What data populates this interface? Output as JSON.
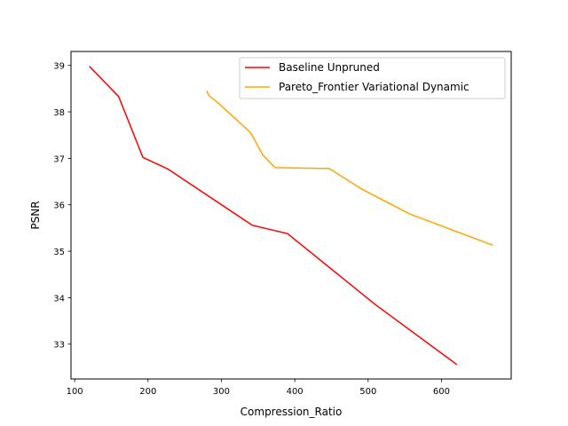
{
  "chart_data": {
    "type": "line",
    "title": "",
    "xlabel": "Compression_Ratio",
    "ylabel": "PSNR",
    "xlim": [
      95,
      695
    ],
    "ylim": [
      32.25,
      39.3
    ],
    "xticks": [
      100,
      200,
      300,
      400,
      500,
      600
    ],
    "yticks": [
      33,
      34,
      35,
      36,
      37,
      38,
      39
    ],
    "grid": false,
    "legend_position": "top-right",
    "series": [
      {
        "name": "Baseline Unpruned",
        "color": "#ff0000",
        "points": [
          [
            120,
            38.98
          ],
          [
            160,
            38.33
          ],
          [
            193,
            37.02
          ],
          [
            227,
            36.77
          ],
          [
            342,
            35.56
          ],
          [
            390,
            35.38
          ],
          [
            510,
            33.85
          ],
          [
            621,
            32.56
          ]
        ]
      },
      {
        "name": "Pareto_Frontier Variational Dynamic",
        "color": "#ffa500",
        "points": [
          [
            280,
            38.45
          ],
          [
            283,
            38.35
          ],
          [
            295,
            38.2
          ],
          [
            340,
            37.55
          ],
          [
            356,
            37.08
          ],
          [
            373,
            36.8
          ],
          [
            447,
            36.78
          ],
          [
            490,
            36.35
          ],
          [
            557,
            35.8
          ],
          [
            670,
            35.13
          ]
        ]
      }
    ]
  }
}
